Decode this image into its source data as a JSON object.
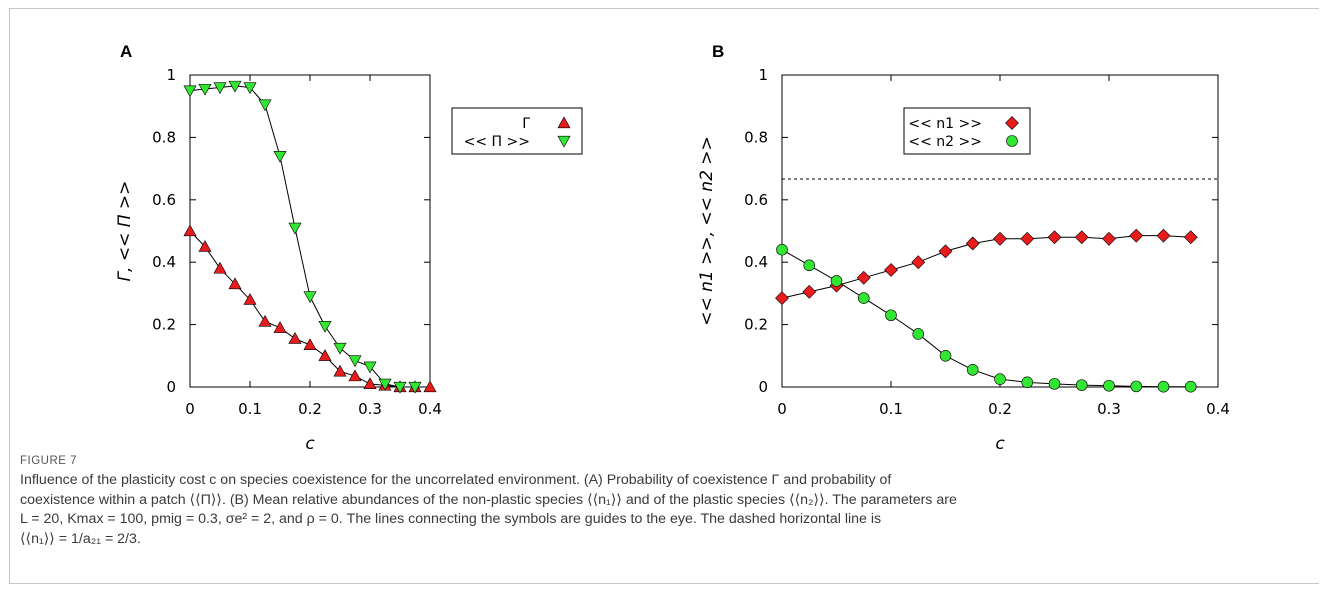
{
  "figure": {
    "label": "FIGURE 7",
    "caption_lines": [
      "Influence of the plasticity cost c on species coexistence for the uncorrelated environment. (A) Probability of coexistence Γ and probability of",
      "coexistence within a patch ⟨⟨Π⟩⟩. (B) Mean relative abundances of the non-plastic species ⟨⟨n₁⟩⟩ and of the plastic species ⟨⟨n₂⟩⟩. The parameters are",
      "L = 20, Kmax = 100, pmig = 0.3, σe² = 2, and ρ = 0. The lines connecting the symbols are guides to the eye. The dashed horizontal line is",
      "⟨⟨n₁⟩⟩ = 1/a₂₁ = 2/3."
    ]
  },
  "chart_data": [
    {
      "panel": "A",
      "type": "line",
      "xlabel": "c",
      "ylabel": "Γ, << Π >>",
      "xlim": [
        0,
        0.4
      ],
      "ylim": [
        0,
        1
      ],
      "xticks": [
        "0",
        "0.1",
        "0.2",
        "0.3",
        "0.4"
      ],
      "yticks": [
        "0",
        "0.2",
        "0.4",
        "0.6",
        "0.8",
        "1"
      ],
      "legend_position": "top-right",
      "series": [
        {
          "name": "Γ",
          "marker": "triangle-up",
          "color": "#e81c1c",
          "x": [
            0,
            0.025,
            0.05,
            0.075,
            0.1,
            0.125,
            0.15,
            0.175,
            0.2,
            0.225,
            0.25,
            0.275,
            0.3,
            0.325,
            0.35,
            0.375,
            0.4
          ],
          "y": [
            0.5,
            0.45,
            0.38,
            0.33,
            0.28,
            0.21,
            0.19,
            0.155,
            0.135,
            0.1,
            0.05,
            0.035,
            0.01,
            0.005,
            0.0,
            0.0,
            0.0
          ]
        },
        {
          "name": "<< Π >>",
          "marker": "triangle-down",
          "color": "#33e633",
          "x": [
            0,
            0.025,
            0.05,
            0.075,
            0.1,
            0.125,
            0.15,
            0.175,
            0.2,
            0.225,
            0.25,
            0.275,
            0.3,
            0.325,
            0.35,
            0.375
          ],
          "y": [
            0.95,
            0.955,
            0.96,
            0.965,
            0.96,
            0.905,
            0.74,
            0.51,
            0.29,
            0.195,
            0.125,
            0.085,
            0.065,
            0.01,
            0.0,
            0.0
          ]
        }
      ]
    },
    {
      "panel": "B",
      "type": "line",
      "xlabel": "c",
      "ylabel": "<< n1 >>, << n2 >>",
      "xlim": [
        0,
        0.4
      ],
      "ylim": [
        0,
        1
      ],
      "xticks": [
        "0",
        "0.1",
        "0.2",
        "0.3",
        "0.4"
      ],
      "yticks": [
        "0",
        "0.2",
        "0.4",
        "0.6",
        "0.8",
        "1"
      ],
      "legend_position": "top-right",
      "reference_line_y": 0.6667,
      "series": [
        {
          "name": "<< n1 >>",
          "marker": "diamond",
          "color": "#e81c1c",
          "x": [
            0,
            0.025,
            0.05,
            0.075,
            0.1,
            0.125,
            0.15,
            0.175,
            0.2,
            0.225,
            0.25,
            0.275,
            0.3,
            0.325,
            0.35,
            0.375
          ],
          "y": [
            0.285,
            0.305,
            0.325,
            0.35,
            0.375,
            0.4,
            0.435,
            0.46,
            0.475,
            0.475,
            0.48,
            0.48,
            0.475,
            0.485,
            0.485,
            0.48
          ]
        },
        {
          "name": "<< n2 >>",
          "marker": "circle",
          "color": "#33e633",
          "x": [
            0,
            0.025,
            0.05,
            0.075,
            0.1,
            0.125,
            0.15,
            0.175,
            0.2,
            0.225,
            0.25,
            0.275,
            0.3,
            0.325,
            0.35,
            0.375
          ],
          "y": [
            0.44,
            0.39,
            0.34,
            0.285,
            0.23,
            0.17,
            0.1,
            0.055,
            0.025,
            0.015,
            0.01,
            0.006,
            0.004,
            0.002,
            0.001,
            0.001
          ]
        }
      ]
    }
  ]
}
